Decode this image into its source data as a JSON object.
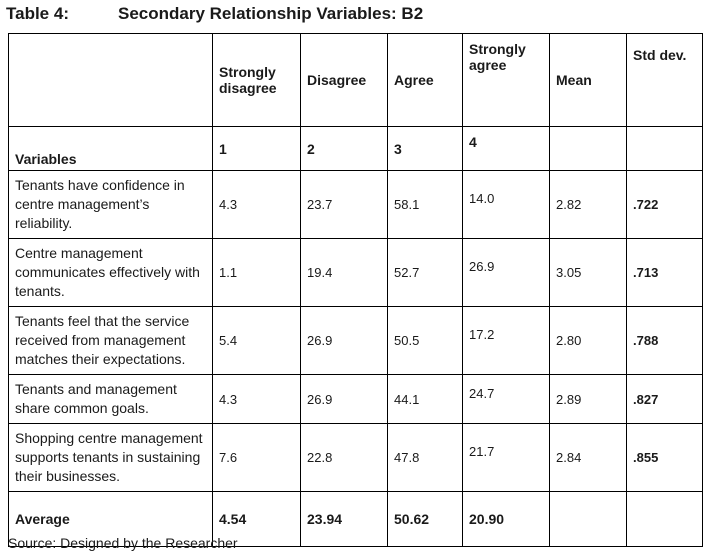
{
  "title": {
    "number": "Table 4:",
    "text": "Secondary Relationship Variables: B2"
  },
  "columns": [
    {
      "label": "Strongly disagree",
      "code": "1"
    },
    {
      "label": "Disagree",
      "code": "2"
    },
    {
      "label": "Agree",
      "code": "3"
    },
    {
      "label": "Strongly agree",
      "code": "4"
    },
    {
      "label": "Mean",
      "code": ""
    },
    {
      "label": "Std dev.",
      "code": ""
    }
  ],
  "variables_label": "Variables",
  "rows": [
    {
      "variable": "Tenants have confidence in centre management’s reliability.",
      "values": [
        "4.3",
        "23.7",
        "58.1",
        "14.0",
        "2.82",
        ".722"
      ]
    },
    {
      "variable": "Centre management communicates effectively with tenants.",
      "values": [
        "1.1",
        "19.4",
        "52.7",
        "26.9",
        "3.05",
        ".713"
      ]
    },
    {
      "variable": "Tenants feel that the service received from management matches their expectations.",
      "values": [
        "5.4",
        "26.9",
        "50.5",
        "17.2",
        "2.80",
        ".788"
      ]
    },
    {
      "variable": "Tenants and management share common goals.",
      "values": [
        "4.3",
        "26.9",
        "44.1",
        "24.7",
        "2.89",
        ".827"
      ]
    },
    {
      "variable": "Shopping centre management supports tenants in sustaining their businesses.",
      "values": [
        "7.6",
        "22.8",
        "47.8",
        "21.7",
        "2.84",
        ".855"
      ]
    }
  ],
  "average": {
    "label": "Average",
    "values": [
      "4.54",
      "23.94",
      "50.62",
      "20.90",
      "",
      ""
    ]
  },
  "source": "Source: Designed by the Researcher"
}
